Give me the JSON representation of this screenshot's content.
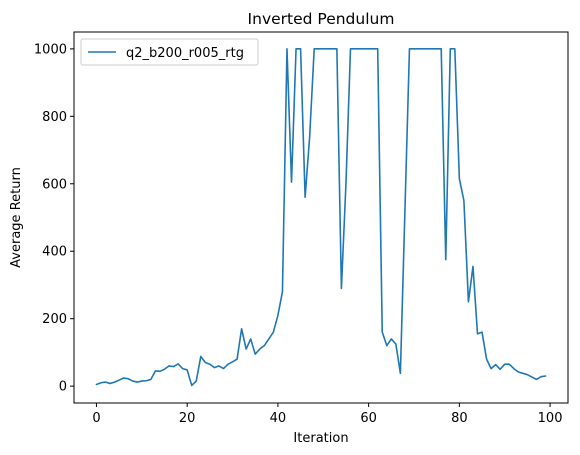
{
  "chart_data": {
    "type": "line",
    "title": "Inverted Pendulum",
    "xlabel": "Iteration",
    "ylabel": "Average Return",
    "xlim": [
      -4.95,
      103.95
    ],
    "ylim": [
      -50,
      1050
    ],
    "xticks": [
      0,
      20,
      40,
      60,
      80,
      100
    ],
    "yticks": [
      0,
      200,
      400,
      600,
      800,
      1000
    ],
    "grid": false,
    "legend_position": "upper-left",
    "series": [
      {
        "name": "q2_b200_r005_rtg",
        "color": "#1f77b4",
        "x": [
          0,
          1,
          2,
          3,
          4,
          5,
          6,
          7,
          8,
          9,
          10,
          11,
          12,
          13,
          14,
          15,
          16,
          17,
          18,
          19,
          20,
          21,
          22,
          23,
          24,
          25,
          26,
          27,
          28,
          29,
          30,
          31,
          32,
          33,
          34,
          35,
          36,
          37,
          38,
          39,
          40,
          41,
          42,
          43,
          44,
          45,
          46,
          47,
          48,
          49,
          50,
          51,
          52,
          53,
          54,
          55,
          56,
          57,
          58,
          59,
          60,
          61,
          62,
          63,
          64,
          65,
          66,
          67,
          68,
          69,
          70,
          71,
          72,
          73,
          74,
          75,
          76,
          77,
          78,
          79,
          80,
          81,
          82,
          83,
          84,
          85,
          86,
          87,
          88,
          89,
          90,
          91,
          92,
          93,
          94,
          95,
          96,
          97,
          98,
          99
        ],
        "y": [
          5,
          10,
          12,
          8,
          12,
          18,
          24,
          22,
          15,
          12,
          15,
          16,
          20,
          45,
          44,
          50,
          60,
          58,
          66,
          52,
          48,
          2,
          15,
          88,
          70,
          65,
          55,
          60,
          52,
          65,
          72,
          80,
          170,
          110,
          140,
          95,
          110,
          120,
          140,
          160,
          210,
          280,
          1000,
          605,
          1000,
          1000,
          560,
          740,
          1000,
          1000,
          1000,
          1000,
          1000,
          1000,
          290,
          600,
          1000,
          1000,
          1000,
          1000,
          1000,
          1000,
          1000,
          160,
          120,
          140,
          125,
          38,
          520,
          1000,
          1000,
          1000,
          1000,
          1000,
          1000,
          1000,
          1000,
          375,
          1000,
          1000,
          615,
          550,
          250,
          355,
          155,
          160,
          80,
          52,
          64,
          50,
          65,
          65,
          52,
          42,
          38,
          34,
          27,
          20,
          28,
          30
        ]
      }
    ]
  }
}
